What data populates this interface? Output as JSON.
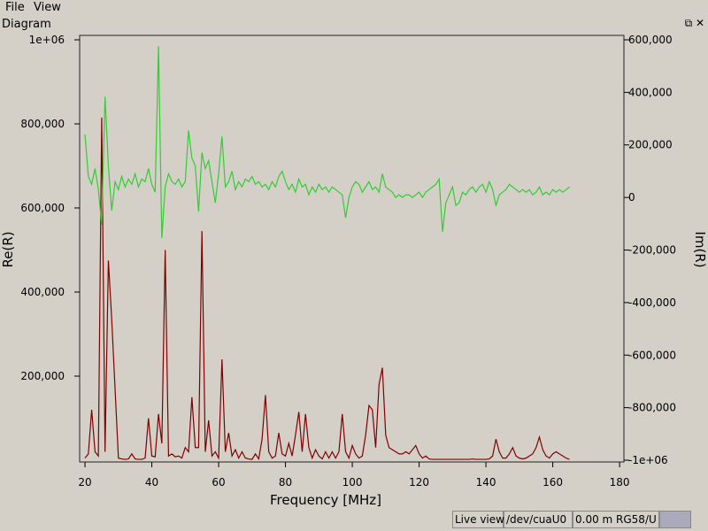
{
  "menu": [
    "File",
    "View"
  ],
  "dock_title": "Diagram",
  "status": [
    "Live view",
    "/dev/cuaU0",
    "0.00 m RG58/U"
  ],
  "chart_data": {
    "type": "line",
    "xlabel": "Frequency [MHz]",
    "ylabel": "Re(R)",
    "y2label": "Im(R)",
    "xlim": [
      18.4,
      181.3
    ],
    "xticks": [
      20,
      40,
      60,
      80,
      100,
      120,
      140,
      160,
      180
    ],
    "ylim": [
      -4200,
      1010500
    ],
    "yticks": [
      {
        "value": 200000,
        "label": "200,000"
      },
      {
        "value": 400000,
        "label": "400,000"
      },
      {
        "value": 600000,
        "label": "600,000"
      },
      {
        "value": 800000,
        "label": "800,000"
      },
      {
        "value": 1000000,
        "label": "1e+06"
      }
    ],
    "y2lim": [
      -1006700,
      616800
    ],
    "y2ticks": [
      {
        "value": -1000000,
        "label": "-1e+06"
      },
      {
        "value": -800000,
        "label": "-800,000"
      },
      {
        "value": -600000,
        "label": "-600,000"
      },
      {
        "value": -400000,
        "label": "-400,000"
      },
      {
        "value": -200000,
        "label": "-200,000"
      },
      0,
      {
        "value": 200000,
        "label": "200,000"
      },
      {
        "value": 400000,
        "label": "400,000"
      },
      {
        "value": 600000,
        "label": "600,000"
      }
    ],
    "x": [
      20,
      21,
      22,
      23,
      24,
      25,
      26,
      27,
      28,
      29,
      30,
      31,
      32,
      33,
      34,
      35,
      36,
      37,
      38,
      39,
      40,
      41,
      42,
      43,
      44,
      45,
      46,
      47,
      48,
      49,
      50,
      51,
      52,
      53,
      54,
      55,
      56,
      57,
      58,
      59,
      60,
      61,
      62,
      63,
      64,
      65,
      66,
      67,
      68,
      69,
      70,
      71,
      72,
      73,
      74,
      75,
      76,
      77,
      78,
      79,
      80,
      81,
      82,
      83,
      84,
      85,
      86,
      87,
      88,
      89,
      90,
      91,
      92,
      93,
      94,
      95,
      96,
      97,
      98,
      99,
      100,
      101,
      102,
      103,
      104,
      105,
      106,
      107,
      108,
      109,
      110,
      111,
      112,
      113,
      114,
      115,
      116,
      117,
      118,
      119,
      120,
      121,
      122,
      123,
      124,
      125,
      126,
      127,
      128,
      129,
      130,
      131,
      132,
      133,
      134,
      135,
      136,
      137,
      138,
      139,
      140,
      141,
      142,
      143,
      144,
      145,
      146,
      147,
      148,
      149,
      150,
      151,
      152,
      153,
      154,
      155,
      156,
      157,
      158,
      159,
      160,
      161,
      162,
      163,
      164,
      165
    ],
    "series": [
      {
        "color": "#800000",
        "values": [
          5000,
          15000,
          120000,
          20000,
          10000,
          815000,
          20000,
          475000,
          335000,
          170000,
          5000,
          3000,
          2000,
          3000,
          15000,
          3000,
          2000,
          2000,
          5000,
          100000,
          10000,
          8000,
          110000,
          40000,
          500000,
          10000,
          15000,
          8000,
          10000,
          5000,
          30000,
          20000,
          150000,
          30000,
          30000,
          545000,
          20000,
          95000,
          10000,
          20000,
          5000,
          240000,
          20000,
          65000,
          10000,
          25000,
          5000,
          20000,
          5000,
          3000,
          2000,
          15000,
          3000,
          50000,
          155000,
          20000,
          5000,
          10000,
          65000,
          15000,
          10000,
          40000,
          10000,
          60000,
          115000,
          20000,
          110000,
          30000,
          5000,
          25000,
          10000,
          3000,
          20000,
          5000,
          20000,
          5000,
          20000,
          110000,
          20000,
          5000,
          35000,
          15000,
          5000,
          10000,
          60000,
          130000,
          120000,
          30000,
          180000,
          220000,
          60000,
          30000,
          25000,
          20000,
          15000,
          15000,
          20000,
          15000,
          25000,
          35000,
          15000,
          5000,
          10000,
          3000,
          2000,
          2000,
          2000,
          2000,
          2000,
          2000,
          2000,
          2000,
          2000,
          2000,
          2000,
          2000,
          3000,
          2000,
          2000,
          2000,
          2000,
          3000,
          10000,
          50000,
          20000,
          5000,
          5000,
          15000,
          30000,
          10000,
          5000,
          3000,
          5000,
          10000,
          15000,
          30000,
          55000,
          25000,
          10000,
          5000,
          15000,
          20000,
          15000,
          10000,
          5000,
          2000
        ]
      },
      {
        "color": "#33cc33",
        "axis": "y2",
        "values": [
          240000,
          80000,
          50000,
          110000,
          30000,
          -104000,
          383000,
          120000,
          -50000,
          60000,
          30000,
          80000,
          40000,
          70000,
          50000,
          90000,
          40000,
          70000,
          60000,
          110000,
          50000,
          20000,
          575000,
          -155000,
          40000,
          90000,
          60000,
          50000,
          70000,
          40000,
          60000,
          255000,
          150000,
          120000,
          -54000,
          170000,
          110000,
          140000,
          60000,
          -20000,
          90000,
          232000,
          40000,
          60000,
          100000,
          30000,
          60000,
          40000,
          70000,
          60000,
          80000,
          50000,
          60000,
          40000,
          50000,
          30000,
          60000,
          40000,
          80000,
          100000,
          60000,
          30000,
          50000,
          20000,
          70000,
          40000,
          50000,
          10000,
          40000,
          20000,
          50000,
          30000,
          40000,
          20000,
          40000,
          30000,
          20000,
          10000,
          -77000,
          0,
          40000,
          60000,
          50000,
          20000,
          40000,
          60000,
          30000,
          40000,
          20000,
          90000,
          40000,
          30000,
          20000,
          0,
          10000,
          0,
          10000,
          10000,
          0,
          10000,
          20000,
          0,
          20000,
          30000,
          40000,
          50000,
          70000,
          -131000,
          -20000,
          10000,
          40000,
          -30000,
          -20000,
          20000,
          10000,
          30000,
          40000,
          20000,
          40000,
          50000,
          20000,
          60000,
          30000,
          -30000,
          10000,
          20000,
          30000,
          50000,
          40000,
          30000,
          20000,
          30000,
          20000,
          30000,
          10000,
          20000,
          40000,
          10000,
          20000,
          10000,
          30000,
          20000,
          30000,
          20000,
          30000,
          40000
        ]
      }
    ]
  }
}
